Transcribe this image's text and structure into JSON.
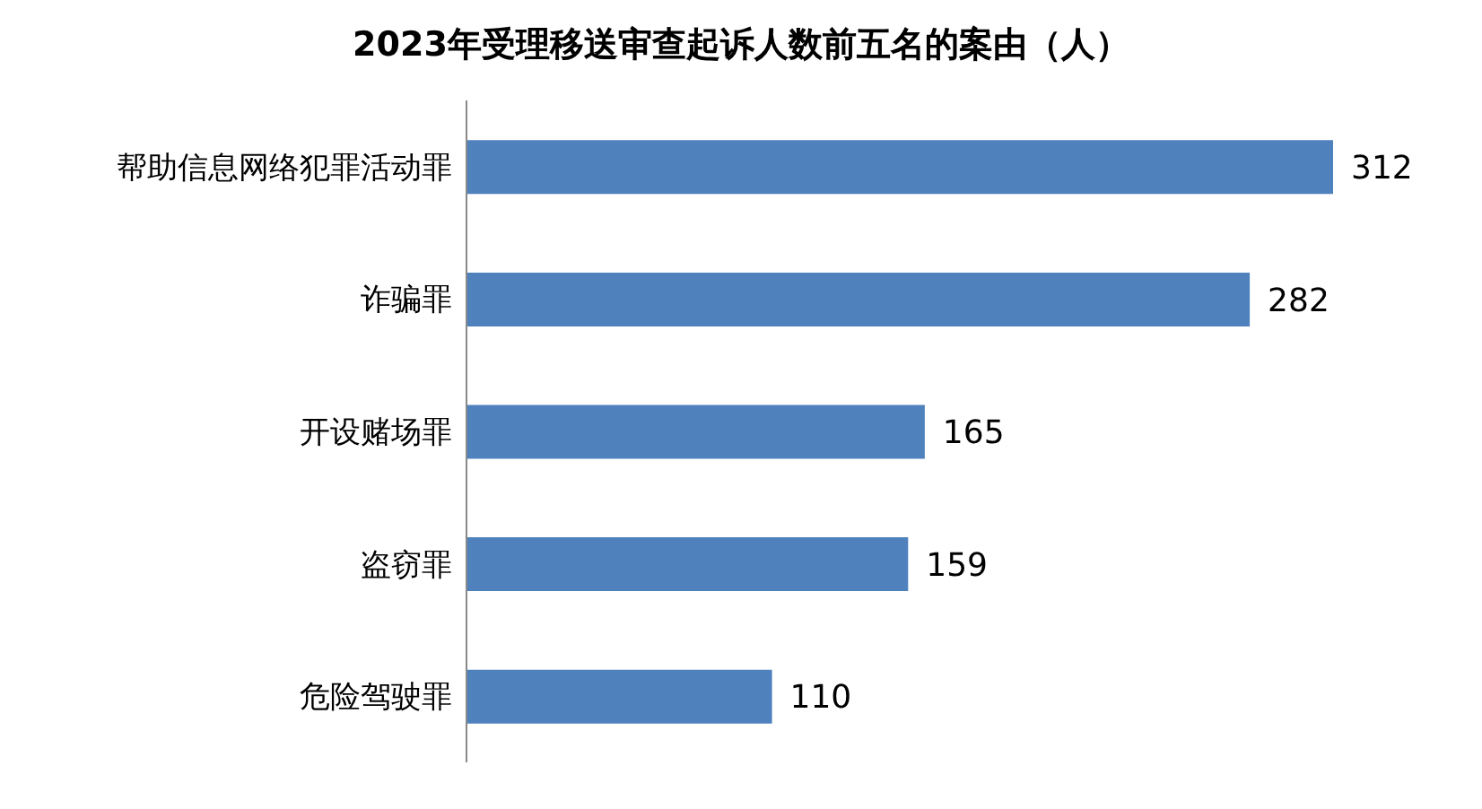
{
  "chart_data": {
    "type": "bar",
    "orientation": "horizontal",
    "title": "2023年受理移送审查起诉人数前五名的案由（人）",
    "categories": [
      "帮助信息网络犯罪活动罪",
      "诈骗罪",
      "开设赌场罪",
      "盗窃罪",
      "危险驾驶罪"
    ],
    "values": [
      312,
      282,
      165,
      159,
      110
    ],
    "color": "#4f81bd",
    "data_labels": true,
    "tick_labels": "y",
    "grid": false
  }
}
